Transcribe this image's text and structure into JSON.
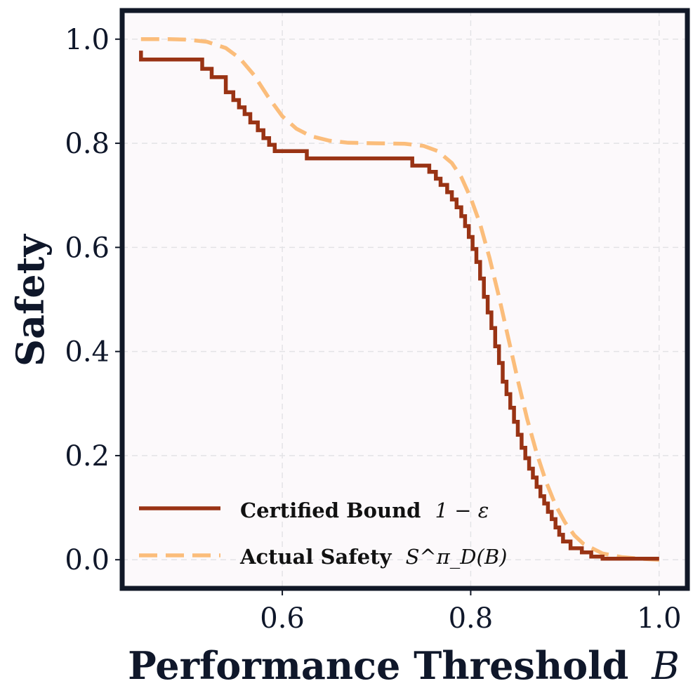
{
  "chart_data": {
    "type": "line",
    "xlabel": "Performance Threshold",
    "xlabel_var": "B",
    "ylabel": "Safety",
    "xlim": [
      0.43,
      1.03
    ],
    "ylim": [
      -0.055,
      1.055
    ],
    "x_ticks": [
      0.6,
      0.8,
      1.0
    ],
    "x_tick_labels": [
      "0.6",
      "0.8",
      "1.0"
    ],
    "y_ticks": [
      0.0,
      0.2,
      0.4,
      0.6,
      0.8,
      1.0
    ],
    "y_tick_labels": [
      "0.0",
      "0.2",
      "0.4",
      "0.6",
      "0.8",
      "1.0"
    ],
    "grid": true,
    "legend_position": "bottom-left",
    "colors": {
      "plot_background": "#fcf9fb",
      "frame": "#111827",
      "certified": "#993314",
      "actual": "#fbbd7b",
      "grid": "#e3e3e6",
      "text": "#0f172a"
    },
    "series": [
      {
        "name": "Certified Bound",
        "math": "1 − ε",
        "style": "solid-step",
        "points": [
          [
            0.45,
            0.978
          ],
          [
            0.45,
            0.961
          ],
          [
            0.515,
            0.961
          ],
          [
            0.515,
            0.943
          ],
          [
            0.525,
            0.943
          ],
          [
            0.525,
            0.927
          ],
          [
            0.54,
            0.927
          ],
          [
            0.54,
            0.898
          ],
          [
            0.548,
            0.898
          ],
          [
            0.548,
            0.883
          ],
          [
            0.554,
            0.883
          ],
          [
            0.554,
            0.869
          ],
          [
            0.56,
            0.869
          ],
          [
            0.56,
            0.856
          ],
          [
            0.566,
            0.856
          ],
          [
            0.566,
            0.84
          ],
          [
            0.574,
            0.84
          ],
          [
            0.574,
            0.825
          ],
          [
            0.58,
            0.825
          ],
          [
            0.58,
            0.81
          ],
          [
            0.586,
            0.81
          ],
          [
            0.586,
            0.797
          ],
          [
            0.592,
            0.797
          ],
          [
            0.592,
            0.785
          ],
          [
            0.626,
            0.785
          ],
          [
            0.626,
            0.771
          ],
          [
            0.738,
            0.771
          ],
          [
            0.738,
            0.757
          ],
          [
            0.756,
            0.757
          ],
          [
            0.756,
            0.745
          ],
          [
            0.763,
            0.745
          ],
          [
            0.763,
            0.732
          ],
          [
            0.768,
            0.732
          ],
          [
            0.768,
            0.72
          ],
          [
            0.775,
            0.72
          ],
          [
            0.775,
            0.706
          ],
          [
            0.78,
            0.706
          ],
          [
            0.78,
            0.692
          ],
          [
            0.785,
            0.692
          ],
          [
            0.785,
            0.677
          ],
          [
            0.79,
            0.677
          ],
          [
            0.79,
            0.66
          ],
          [
            0.794,
            0.66
          ],
          [
            0.794,
            0.641
          ],
          [
            0.798,
            0.641
          ],
          [
            0.798,
            0.62
          ],
          [
            0.802,
            0.62
          ],
          [
            0.802,
            0.597
          ],
          [
            0.806,
            0.597
          ],
          [
            0.806,
            0.572
          ],
          [
            0.81,
            0.572
          ],
          [
            0.81,
            0.54
          ],
          [
            0.814,
            0.54
          ],
          [
            0.814,
            0.505
          ],
          [
            0.818,
            0.505
          ],
          [
            0.818,
            0.475
          ],
          [
            0.822,
            0.475
          ],
          [
            0.822,
            0.445
          ],
          [
            0.826,
            0.445
          ],
          [
            0.826,
            0.41
          ],
          [
            0.83,
            0.41
          ],
          [
            0.83,
            0.378
          ],
          [
            0.834,
            0.378
          ],
          [
            0.834,
            0.342
          ],
          [
            0.838,
            0.342
          ],
          [
            0.838,
            0.318
          ],
          [
            0.842,
            0.318
          ],
          [
            0.842,
            0.292
          ],
          [
            0.846,
            0.292
          ],
          [
            0.846,
            0.265
          ],
          [
            0.85,
            0.265
          ],
          [
            0.85,
            0.24
          ],
          [
            0.854,
            0.24
          ],
          [
            0.854,
            0.215
          ],
          [
            0.858,
            0.215
          ],
          [
            0.858,
            0.195
          ],
          [
            0.862,
            0.195
          ],
          [
            0.862,
            0.175
          ],
          [
            0.866,
            0.175
          ],
          [
            0.866,
            0.158
          ],
          [
            0.87,
            0.158
          ],
          [
            0.87,
            0.14
          ],
          [
            0.874,
            0.14
          ],
          [
            0.874,
            0.122
          ],
          [
            0.878,
            0.122
          ],
          [
            0.878,
            0.108
          ],
          [
            0.882,
            0.108
          ],
          [
            0.882,
            0.092
          ],
          [
            0.886,
            0.092
          ],
          [
            0.886,
            0.078
          ],
          [
            0.89,
            0.078
          ],
          [
            0.89,
            0.062
          ],
          [
            0.894,
            0.062
          ],
          [
            0.894,
            0.048
          ],
          [
            0.898,
            0.048
          ],
          [
            0.898,
            0.035
          ],
          [
            0.906,
            0.035
          ],
          [
            0.906,
            0.022
          ],
          [
            0.918,
            0.022
          ],
          [
            0.918,
            0.014
          ],
          [
            0.928,
            0.014
          ],
          [
            0.928,
            0.006
          ],
          [
            0.94,
            0.006
          ],
          [
            0.94,
            0.002
          ],
          [
            1.0,
            0.002
          ]
        ]
      },
      {
        "name": "Actual Safety",
        "math": "S^π_D(B)",
        "style": "dashed",
        "points": [
          [
            0.45,
            1.0
          ],
          [
            0.48,
            1.0
          ],
          [
            0.5,
            0.999
          ],
          [
            0.52,
            0.995
          ],
          [
            0.54,
            0.983
          ],
          [
            0.555,
            0.963
          ],
          [
            0.57,
            0.931
          ],
          [
            0.585,
            0.889
          ],
          [
            0.6,
            0.852
          ],
          [
            0.615,
            0.828
          ],
          [
            0.63,
            0.814
          ],
          [
            0.65,
            0.805
          ],
          [
            0.67,
            0.801
          ],
          [
            0.7,
            0.8
          ],
          [
            0.73,
            0.799
          ],
          [
            0.75,
            0.795
          ],
          [
            0.765,
            0.785
          ],
          [
            0.78,
            0.762
          ],
          [
            0.79,
            0.735
          ],
          [
            0.8,
            0.695
          ],
          [
            0.81,
            0.645
          ],
          [
            0.82,
            0.58
          ],
          [
            0.83,
            0.505
          ],
          [
            0.84,
            0.425
          ],
          [
            0.85,
            0.345
          ],
          [
            0.86,
            0.27
          ],
          [
            0.87,
            0.205
          ],
          [
            0.88,
            0.15
          ],
          [
            0.89,
            0.105
          ],
          [
            0.9,
            0.072
          ],
          [
            0.91,
            0.047
          ],
          [
            0.92,
            0.03
          ],
          [
            0.94,
            0.012
          ],
          [
            0.96,
            0.005
          ],
          [
            0.98,
            0.002
          ],
          [
            1.0,
            0.0
          ]
        ]
      }
    ]
  }
}
